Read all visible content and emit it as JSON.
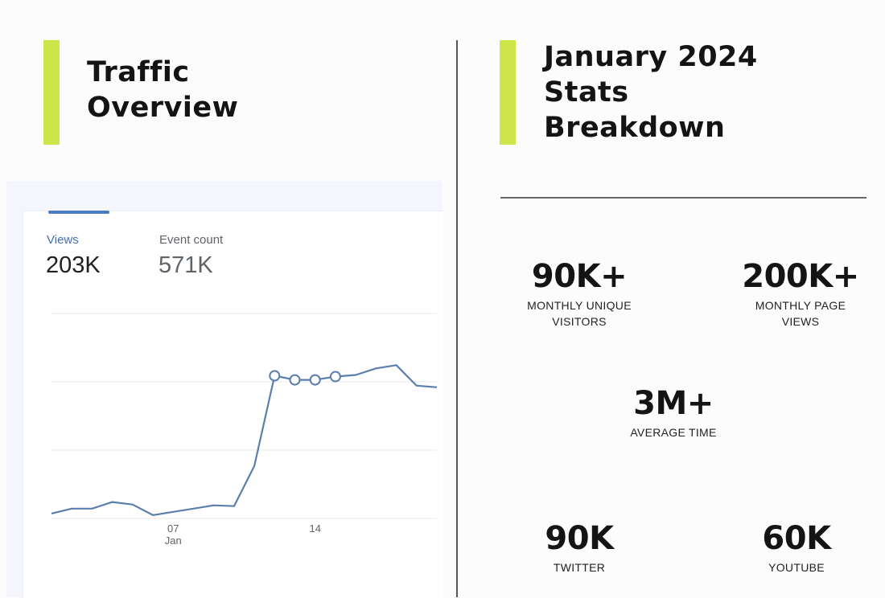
{
  "left": {
    "title_lines": [
      "Traffic",
      "Overview"
    ]
  },
  "right": {
    "title_lines": [
      "January 2024",
      "Stats",
      "Breakdown"
    ]
  },
  "chart_card": {
    "metrics": [
      {
        "label": "Views",
        "value": "203K"
      },
      {
        "label": "Event count",
        "value": "571K"
      }
    ]
  },
  "chart_data": {
    "type": "line",
    "title": "",
    "xlabel": "",
    "ylabel": "",
    "x": [
      1,
      2,
      3,
      4,
      5,
      6,
      7,
      8,
      9,
      10,
      11,
      12,
      13,
      14,
      15,
      16,
      17,
      18,
      19,
      20
    ],
    "series": [
      {
        "name": "Views",
        "values": [
          600,
          1200,
          1200,
          2000,
          1700,
          400,
          800,
          1200,
          1600,
          1500,
          6400,
          17400,
          16900,
          16900,
          17300,
          17500,
          18300,
          18700,
          16200,
          16000
        ]
      }
    ],
    "ylim": [
      0,
      25000
    ],
    "xticks": [
      {
        "x": 7,
        "label": "07",
        "sublabel": "Jan"
      },
      {
        "x": 14,
        "label": "14",
        "sublabel": ""
      }
    ],
    "highlighted_points": [
      12,
      13,
      14,
      15
    ],
    "color": "#5b7fad"
  },
  "stats": {
    "unique_visitors": {
      "value": "90K+",
      "label_lines": [
        "MONTHLY UNIQUE",
        "VISITORS"
      ]
    },
    "page_views": {
      "value": "200K+",
      "label_lines": [
        "MONTHLY PAGE",
        "VIEWS"
      ]
    },
    "average_time": {
      "value": "3M+",
      "label_lines": [
        "AVERAGE TIME"
      ]
    },
    "twitter": {
      "value": "90K",
      "label_lines": [
        "TWITTER"
      ]
    },
    "youtube": {
      "value": "60K",
      "label_lines": [
        "YOUTUBE"
      ]
    }
  },
  "colors": {
    "accent": "#cde548",
    "line": "#5b7fad",
    "tab": "#4a7dbf"
  }
}
